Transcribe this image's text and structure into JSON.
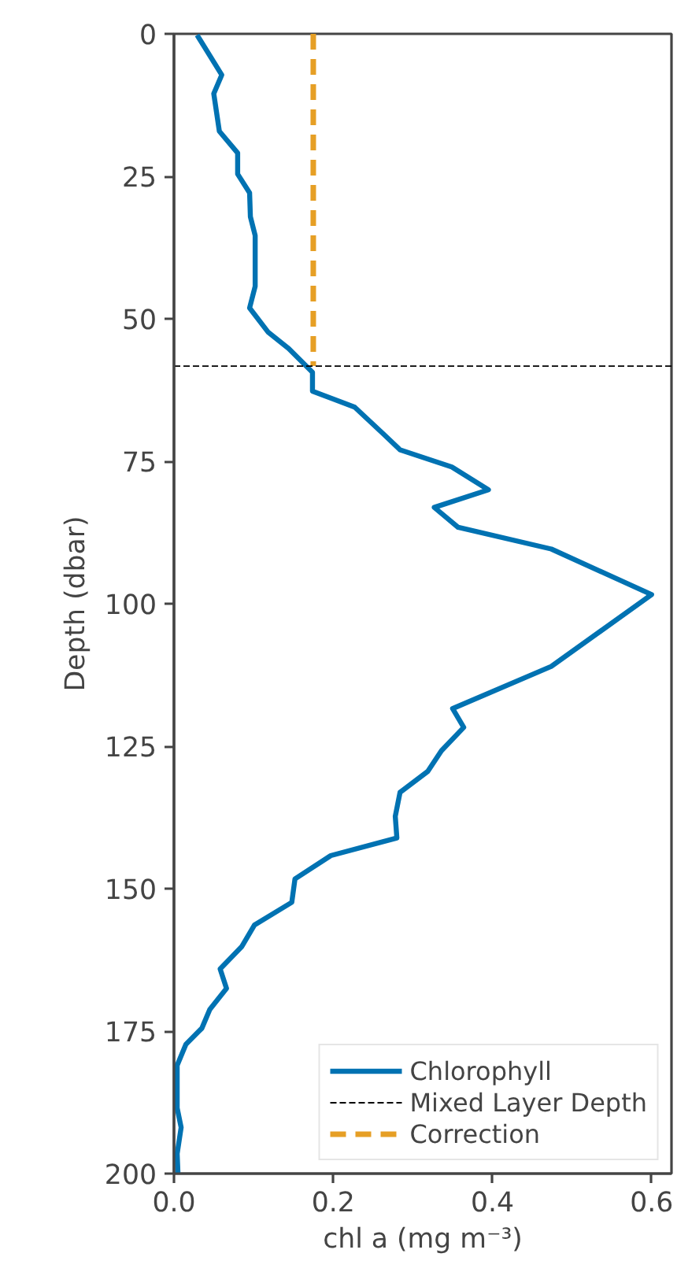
{
  "chart_data": {
    "type": "line",
    "xlabel": "chl a (mg m⁻³)",
    "ylabel": "Depth (dbar)",
    "xlim": [
      0,
      0.625
    ],
    "xticks": [
      {
        "value": 0,
        "label": "0.0"
      },
      {
        "value": 0.2,
        "label": "0.2"
      },
      {
        "value": 0.4,
        "label": "0.4"
      },
      {
        "value": 0.6,
        "label": "0.6"
      }
    ],
    "ylim": [
      200,
      0
    ],
    "yticks": [
      0,
      25,
      50,
      75,
      100,
      125,
      150,
      175,
      200
    ],
    "grid": false,
    "legend": "bottom right",
    "line_style": "solid",
    "series": [
      {
        "name": "Chlorophyll",
        "color": "#0072b2",
        "x": [
          0.029,
          0.06,
          0.05,
          0.057,
          0.08,
          0.08,
          0.095,
          0.096,
          0.102,
          0.102,
          0.095,
          0.118,
          0.144,
          0.174,
          0.174,
          0.227,
          0.263,
          0.284,
          0.349,
          0.395,
          0.327,
          0.357,
          0.474,
          0.6,
          0.474,
          0.35,
          0.364,
          0.336,
          0.319,
          0.284,
          0.278,
          0.28,
          0.197,
          0.152,
          0.148,
          0.101,
          0.085,
          0.058,
          0.066,
          0.045,
          0.035,
          0.015,
          0.004,
          0.004,
          0.009,
          0.004,
          0.005
        ],
        "values": [
          0.2,
          7.2,
          10.5,
          17.1,
          20.9,
          24.6,
          27.9,
          32.1,
          35.4,
          44.3,
          48.1,
          52.3,
          55.2,
          59.4,
          62.7,
          65.5,
          70.2,
          73.0,
          76.0,
          80.0,
          83.1,
          86.6,
          90.4,
          98.4,
          111.0,
          118.4,
          121.7,
          125.8,
          129.4,
          133.1,
          137.3,
          141.1,
          144.2,
          148.3,
          152.4,
          156.4,
          160.2,
          164.1,
          167.5,
          171.2,
          174.5,
          177.3,
          181.0,
          188.5,
          191.9,
          196.5,
          200.0
        ]
      },
      {
        "name": "Correction",
        "color": "#e69f25",
        "line_style": "dashed",
        "x": [
          0.175,
          0.175
        ],
        "values": [
          0,
          58.3
        ]
      }
    ],
    "ref_lines": [
      {
        "axis": "y",
        "value": 58.3,
        "label": "Mixed Layer Depth",
        "color": "#000000",
        "line_style": "dashed"
      }
    ]
  }
}
